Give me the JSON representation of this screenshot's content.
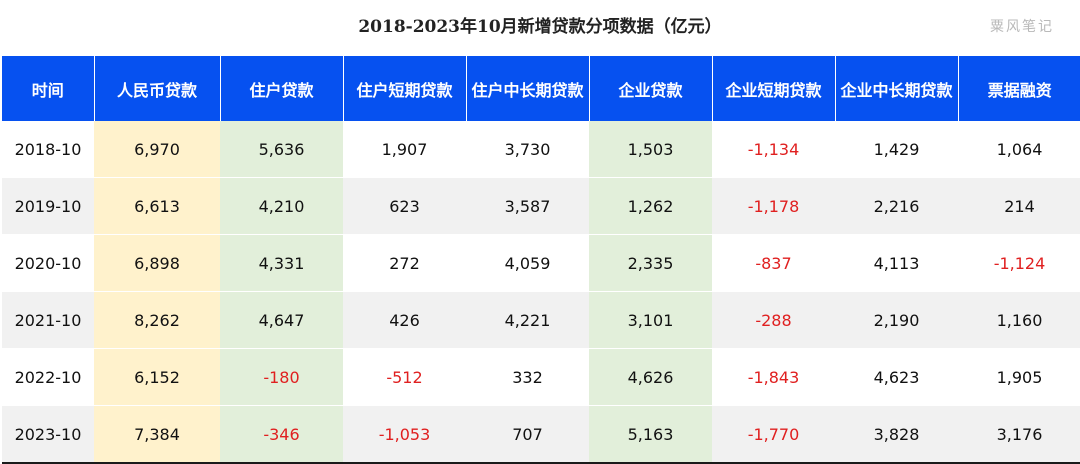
{
  "title": "2018-2023年10月新增贷款分项数据（亿元）",
  "watermark": "粟风笔记",
  "colors": {
    "header_bg": "#0651f0",
    "rmb_col_bg": "#fff2cc",
    "green_col_bg": "#e2efda",
    "negative_text": "#e02020"
  },
  "chart_data": {
    "type": "table",
    "title": "2018-2023年10月新增贷款分项数据（亿元）",
    "columns": [
      "时间",
      "人民币贷款",
      "住户贷款",
      "住户短期贷款",
      "住户中长期贷款",
      "企业贷款",
      "企业短期贷款",
      "企业中长期贷款",
      "票据融资"
    ],
    "rows": [
      [
        "2018-10",
        "6,970",
        "5,636",
        "1,907",
        "3,730",
        "1,503",
        "-1,134",
        "1,429",
        "1,064"
      ],
      [
        "2019-10",
        "6,613",
        "4,210",
        "623",
        "3,587",
        "1,262",
        "-1,178",
        "2,216",
        "214"
      ],
      [
        "2020-10",
        "6,898",
        "4,331",
        "272",
        "4,059",
        "2,335",
        "-837",
        "4,113",
        "-1,124"
      ],
      [
        "2021-10",
        "8,262",
        "4,647",
        "426",
        "4,221",
        "3,101",
        "-288",
        "2,190",
        "1,160"
      ],
      [
        "2022-10",
        "6,152",
        "-180",
        "-512",
        "332",
        "4,626",
        "-1,843",
        "4,623",
        "1,905"
      ],
      [
        "2023-10",
        "7,384",
        "-346",
        "-1,053",
        "707",
        "5,163",
        "-1,770",
        "3,828",
        "3,176"
      ]
    ]
  }
}
